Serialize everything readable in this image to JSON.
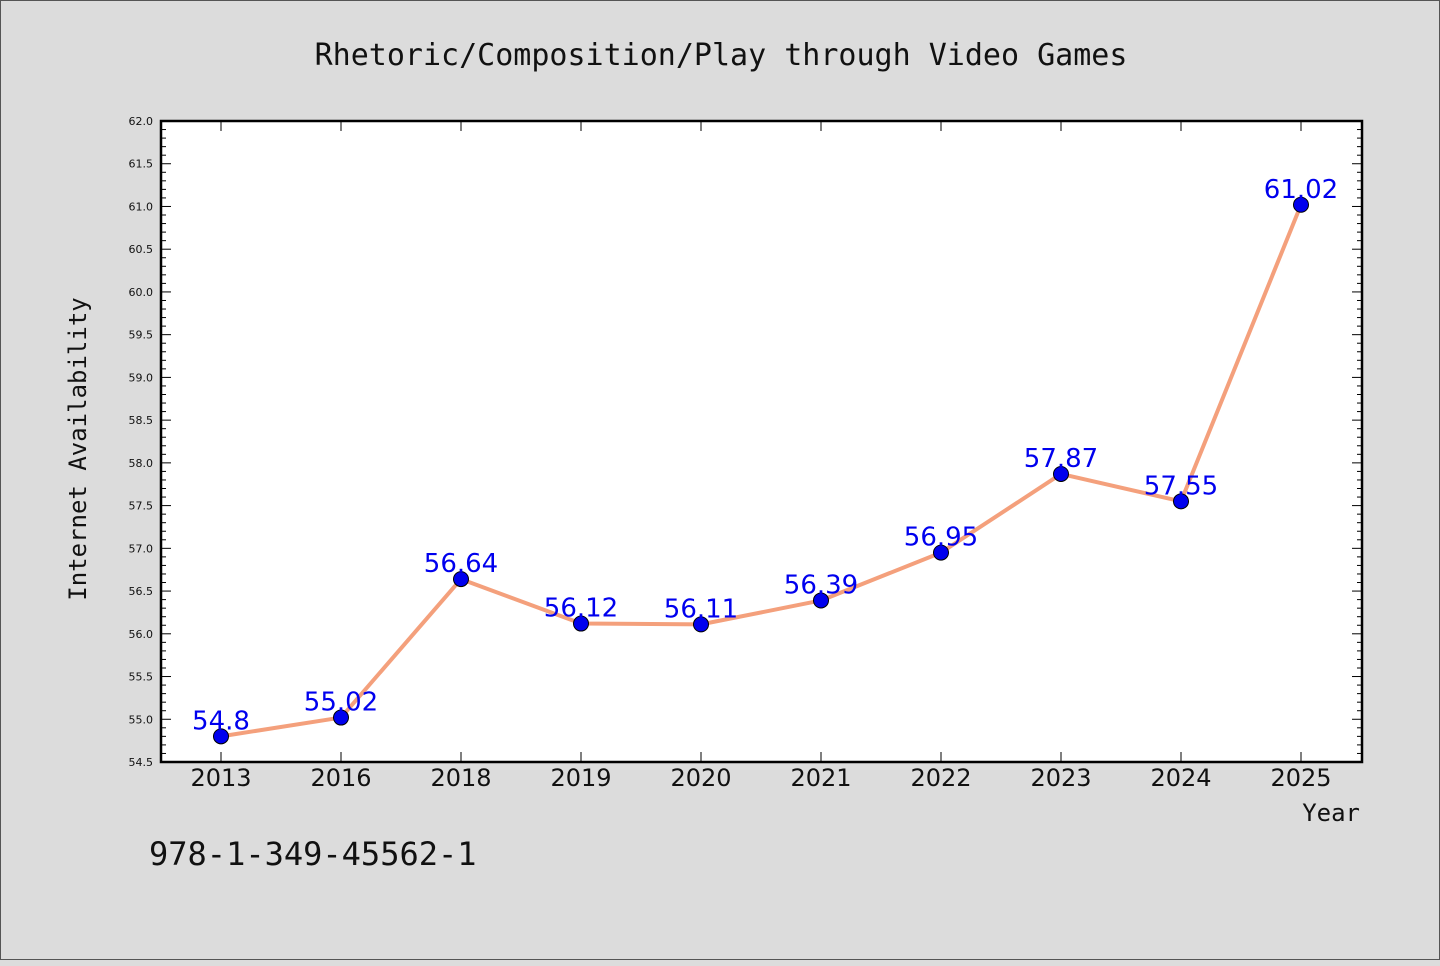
{
  "chart_data": {
    "type": "line",
    "title": "Rhetoric/Composition/Play through Video Games",
    "xlabel": "Year",
    "ylabel": "Internet Availability",
    "categories": [
      "2013",
      "2016",
      "2018",
      "2019",
      "2020",
      "2021",
      "2022",
      "2023",
      "2024",
      "2025"
    ],
    "series": [
      {
        "values": [
          54.8,
          55.02,
          56.64,
          56.12,
          56.11,
          56.39,
          56.95,
          57.87,
          57.55,
          61.02
        ],
        "labels": [
          "54.8",
          "55.02",
          "56.64",
          "56.12",
          "56.11",
          "56.39",
          "56.95",
          "57.87",
          "57.55",
          "61.02"
        ],
        "line_color": "#f4a07c",
        "marker_color": "#0000ee"
      }
    ],
    "ylim": [
      54.5,
      62.0
    ],
    "yticks": [
      "54.5",
      "55.0",
      "55.5",
      "56.0",
      "56.5",
      "57.0",
      "57.5",
      "58.0",
      "58.5",
      "59.0",
      "59.5",
      "60.0",
      "60.5",
      "61.0",
      "61.5",
      "62.0"
    ],
    "grid": false,
    "legend": "none"
  },
  "annotation": "978-1-349-45562-1",
  "colors": {
    "background": "#dcdcdc",
    "plot_background": "#ffffff",
    "line": "#f4a07c",
    "marker": "#0000ee",
    "label": "#0000ee"
  }
}
